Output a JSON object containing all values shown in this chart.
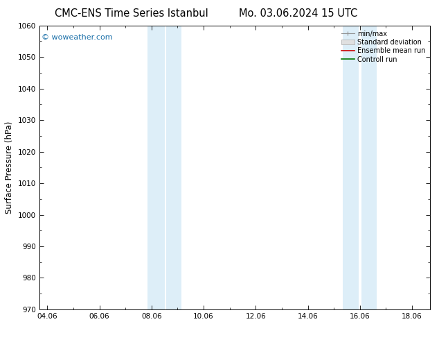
{
  "title_left": "CMC-ENS Time Series Istanbul",
  "title_right": "Mo. 03.06.2024 15 UTC",
  "ylabel": "Surface Pressure (hPa)",
  "ylim": [
    970,
    1060
  ],
  "yticks": [
    970,
    980,
    990,
    1000,
    1010,
    1020,
    1030,
    1040,
    1050,
    1060
  ],
  "xtick_labels": [
    "04.06",
    "06.06",
    "08.06",
    "10.06",
    "12.06",
    "14.06",
    "16.06",
    "18.06"
  ],
  "xtick_positions": [
    0,
    2,
    4,
    6,
    8,
    10,
    12,
    14
  ],
  "xlim": [
    -0.3,
    14.7
  ],
  "shaded_regions": [
    {
      "start": 3.85,
      "end": 4.5
    },
    {
      "start": 4.55,
      "end": 5.15
    },
    {
      "start": 11.35,
      "end": 11.95
    },
    {
      "start": 12.05,
      "end": 12.65
    }
  ],
  "shaded_color": "#ddeef8",
  "watermark": "© woweather.com",
  "watermark_color": "#1a6fa8",
  "legend_items": [
    {
      "label": "min/max",
      "color": "#909090",
      "style": "line_caps"
    },
    {
      "label": "Standard deviation",
      "color": "#d0d0d0",
      "style": "rect"
    },
    {
      "label": "Ensemble mean run",
      "color": "#cc0000",
      "style": "line"
    },
    {
      "label": "Controll run",
      "color": "#007700",
      "style": "line"
    }
  ],
  "bg_color": "#ffffff",
  "title_fontsize": 10.5,
  "tick_fontsize": 7.5,
  "ylabel_fontsize": 8.5,
  "watermark_fontsize": 8,
  "legend_fontsize": 7
}
